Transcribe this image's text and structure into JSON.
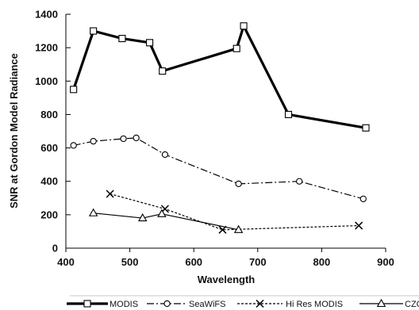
{
  "chart_data": {
    "type": "line",
    "title": "",
    "xlabel": "Wavelength",
    "ylabel": "SNR at Gordon Model Radiance",
    "xlim": [
      400,
      900
    ],
    "ylim": [
      0,
      1400
    ],
    "xticks": [
      400,
      500,
      600,
      700,
      800,
      900
    ],
    "yticks": [
      0,
      200,
      400,
      600,
      800,
      1000,
      1200,
      1400
    ],
    "grid": false,
    "legend_position": "bottom",
    "series": [
      {
        "name": "MODIS",
        "marker": "square",
        "style": "solid-thick",
        "x": [
          412,
          443,
          488,
          531,
          551,
          667,
          678,
          748,
          869
        ],
        "y": [
          950,
          1300,
          1255,
          1230,
          1060,
          1195,
          1330,
          800,
          720
        ]
      },
      {
        "name": "SeaWiFS",
        "marker": "circle",
        "style": "dash-dot",
        "x": [
          412,
          443,
          490,
          510,
          555,
          670,
          765,
          865
        ],
        "y": [
          615,
          640,
          655,
          660,
          560,
          385,
          400,
          295
        ]
      },
      {
        "name": "Hi Res MODIS",
        "marker": "x",
        "style": "dotted",
        "x": [
          469,
          555,
          645,
          858
        ],
        "y": [
          325,
          235,
          110,
          135
        ]
      },
      {
        "name": "CZCS",
        "marker": "triangle",
        "style": "solid-thin",
        "x": [
          443,
          520,
          550,
          670
        ],
        "y": [
          210,
          180,
          205,
          110
        ]
      }
    ]
  }
}
